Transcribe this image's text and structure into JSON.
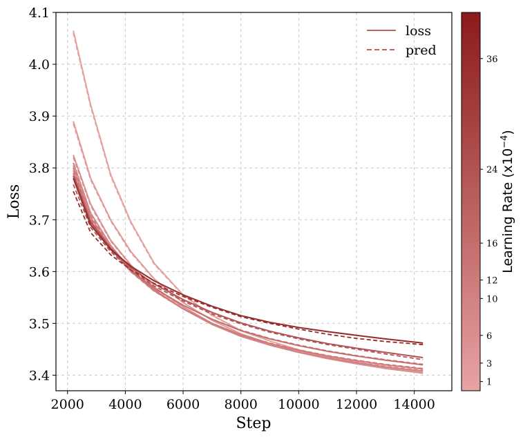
{
  "chart_data": {
    "type": "line",
    "xlabel": "Step",
    "ylabel": "Loss",
    "xlim": [
      1600,
      15300
    ],
    "ylim": [
      3.37,
      4.1
    ],
    "xticks": [
      2000,
      4000,
      6000,
      8000,
      10000,
      12000,
      14000
    ],
    "yticks": [
      3.4,
      3.5,
      3.6,
      3.7,
      3.8,
      3.9,
      4.0,
      4.1
    ],
    "grid": true,
    "legend_position": "top-right",
    "legend": [
      {
        "label": "loss",
        "style": "solid"
      },
      {
        "label": "pred",
        "style": "dashed"
      }
    ],
    "colorbar": {
      "label": "Learning Rate (x10",
      "label_exponent": "−4",
      "label_close": ")",
      "ticks": [
        1,
        3,
        6,
        10,
        12,
        16,
        24,
        36
      ],
      "range": [
        0,
        41
      ],
      "color_low": "#e8a3a3",
      "color_high": "#8b1a1a"
    },
    "x": [
      2200,
      2800,
      3500,
      4200,
      5000,
      6000,
      7000,
      8000,
      9000,
      10000,
      11000,
      12000,
      13000,
      14300
    ],
    "series": [
      {
        "lr": 1,
        "loss": [
          4.065,
          3.922,
          3.786,
          3.695,
          3.616,
          3.555,
          3.516,
          3.486,
          3.466,
          3.449,
          3.436,
          3.425,
          3.416,
          3.405
        ],
        "pred": [
          4.06,
          3.918,
          3.783,
          3.693,
          3.614,
          3.554,
          3.515,
          3.486,
          3.466,
          3.449,
          3.436,
          3.425,
          3.416,
          3.405
        ]
      },
      {
        "lr": 3,
        "loss": [
          3.89,
          3.78,
          3.699,
          3.638,
          3.586,
          3.54,
          3.506,
          3.48,
          3.461,
          3.446,
          3.434,
          3.423,
          3.414,
          3.404
        ],
        "pred": [
          3.885,
          3.777,
          3.697,
          3.636,
          3.585,
          3.54,
          3.506,
          3.48,
          3.461,
          3.446,
          3.434,
          3.423,
          3.414,
          3.404
        ]
      },
      {
        "lr": 6,
        "loss": [
          3.825,
          3.73,
          3.66,
          3.612,
          3.57,
          3.532,
          3.5,
          3.476,
          3.458,
          3.444,
          3.432,
          3.422,
          3.413,
          3.404
        ],
        "pred": [
          3.82,
          3.727,
          3.658,
          3.611,
          3.569,
          3.531,
          3.5,
          3.476,
          3.458,
          3.444,
          3.432,
          3.422,
          3.413,
          3.404
        ]
      },
      {
        "lr": 10,
        "loss": [
          3.81,
          3.713,
          3.65,
          3.603,
          3.565,
          3.528,
          3.498,
          3.475,
          3.458,
          3.444,
          3.433,
          3.424,
          3.416,
          3.408
        ],
        "pred": [
          3.805,
          3.71,
          3.648,
          3.602,
          3.564,
          3.528,
          3.498,
          3.475,
          3.458,
          3.445,
          3.434,
          3.425,
          3.417,
          3.409
        ]
      },
      {
        "lr": 12,
        "loss": [
          3.8,
          3.705,
          3.645,
          3.6,
          3.563,
          3.528,
          3.5,
          3.478,
          3.461,
          3.448,
          3.437,
          3.428,
          3.42,
          3.412
        ],
        "pred": [
          3.795,
          3.702,
          3.643,
          3.599,
          3.562,
          3.528,
          3.5,
          3.478,
          3.462,
          3.449,
          3.438,
          3.429,
          3.421,
          3.413
        ]
      },
      {
        "lr": 16,
        "loss": [
          3.79,
          3.698,
          3.643,
          3.602,
          3.568,
          3.535,
          3.508,
          3.486,
          3.47,
          3.457,
          3.446,
          3.437,
          3.429,
          3.42
        ],
        "pred": [
          3.784,
          3.695,
          3.641,
          3.601,
          3.567,
          3.535,
          3.508,
          3.487,
          3.471,
          3.458,
          3.447,
          3.438,
          3.43,
          3.421
        ]
      },
      {
        "lr": 24,
        "loss": [
          3.785,
          3.695,
          3.645,
          3.607,
          3.576,
          3.546,
          3.521,
          3.501,
          3.485,
          3.472,
          3.461,
          3.452,
          3.444,
          3.434
        ],
        "pred": [
          3.768,
          3.685,
          3.638,
          3.603,
          3.572,
          3.543,
          3.518,
          3.499,
          3.483,
          3.47,
          3.459,
          3.45,
          3.441,
          3.43
        ]
      },
      {
        "lr": 36,
        "loss": [
          3.78,
          3.69,
          3.642,
          3.61,
          3.582,
          3.555,
          3.533,
          3.515,
          3.502,
          3.492,
          3.484,
          3.477,
          3.47,
          3.462
        ],
        "pred": [
          3.755,
          3.675,
          3.632,
          3.603,
          3.577,
          3.552,
          3.531,
          3.513,
          3.5,
          3.489,
          3.479,
          3.471,
          3.465,
          3.459
        ]
      }
    ]
  }
}
